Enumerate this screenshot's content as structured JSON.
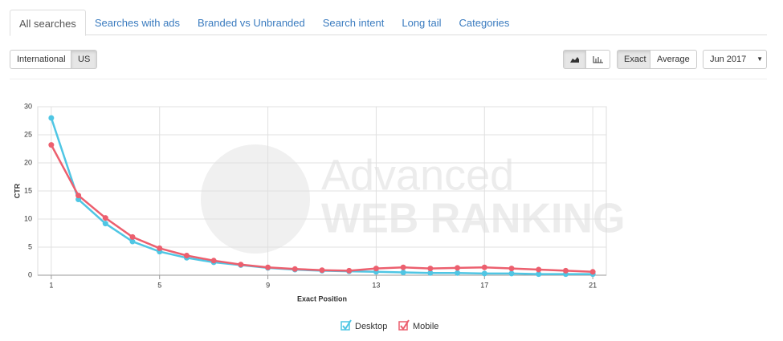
{
  "tabs": [
    "All searches",
    "Searches with ads",
    "Branded vs Unbranded",
    "Search intent",
    "Long tail",
    "Categories"
  ],
  "region_buttons": [
    "International",
    "US"
  ],
  "mode_buttons": [
    "Exact",
    "Average"
  ],
  "month_select": "Jun 2017",
  "watermark": {
    "line1": "Advanced",
    "line2": "WEB RANKING"
  },
  "chart_data": {
    "type": "line",
    "x_label": "Exact Position",
    "y_label": "CTR",
    "x": [
      1,
      2,
      3,
      4,
      5,
      6,
      7,
      8,
      9,
      10,
      11,
      12,
      13,
      14,
      15,
      16,
      17,
      18,
      19,
      20,
      21
    ],
    "xlim": [
      0.5,
      21.5
    ],
    "xticks": [
      1,
      5,
      9,
      13,
      17,
      21
    ],
    "ylim": [
      0,
      30
    ],
    "yticks": [
      0,
      5,
      10,
      15,
      20,
      25,
      30
    ],
    "grid": true,
    "legend": "bottom",
    "series": [
      {
        "name": "Desktop",
        "color": "#4fc6e4",
        "values": [
          28,
          13.5,
          9.2,
          6.0,
          4.2,
          3.1,
          2.3,
          1.8,
          1.3,
          1.0,
          0.8,
          0.7,
          0.6,
          0.5,
          0.4,
          0.4,
          0.3,
          0.3,
          0.2,
          0.2,
          0.2
        ]
      },
      {
        "name": "Mobile",
        "color": "#ec5f6e",
        "values": [
          23.2,
          14.2,
          10.2,
          6.8,
          4.8,
          3.5,
          2.6,
          1.9,
          1.4,
          1.1,
          0.9,
          0.8,
          1.2,
          1.4,
          1.2,
          1.3,
          1.4,
          1.2,
          1.0,
          0.8,
          0.6
        ]
      }
    ]
  }
}
